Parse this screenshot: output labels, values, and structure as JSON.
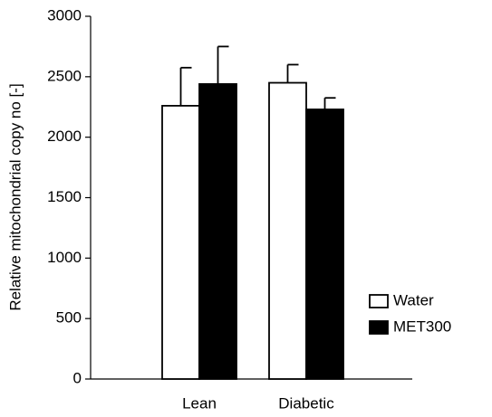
{
  "chart_data": {
    "type": "bar",
    "y_label": "Relative mitochondrial copy no [-]",
    "categories": [
      "Lean",
      "Diabetic"
    ],
    "series": [
      {
        "name": "Water",
        "color": "#ffffff",
        "values": [
          2260,
          2450
        ],
        "errors": [
          315,
          150
        ]
      },
      {
        "name": "MET300",
        "color": "#000000",
        "values": [
          2440,
          2230
        ],
        "errors": [
          310,
          95
        ]
      }
    ],
    "ylim": [
      0,
      3000
    ],
    "yticks": [
      0,
      500,
      1000,
      1500,
      2000,
      2500,
      3000
    ],
    "grid": false,
    "legend": "lower right"
  }
}
